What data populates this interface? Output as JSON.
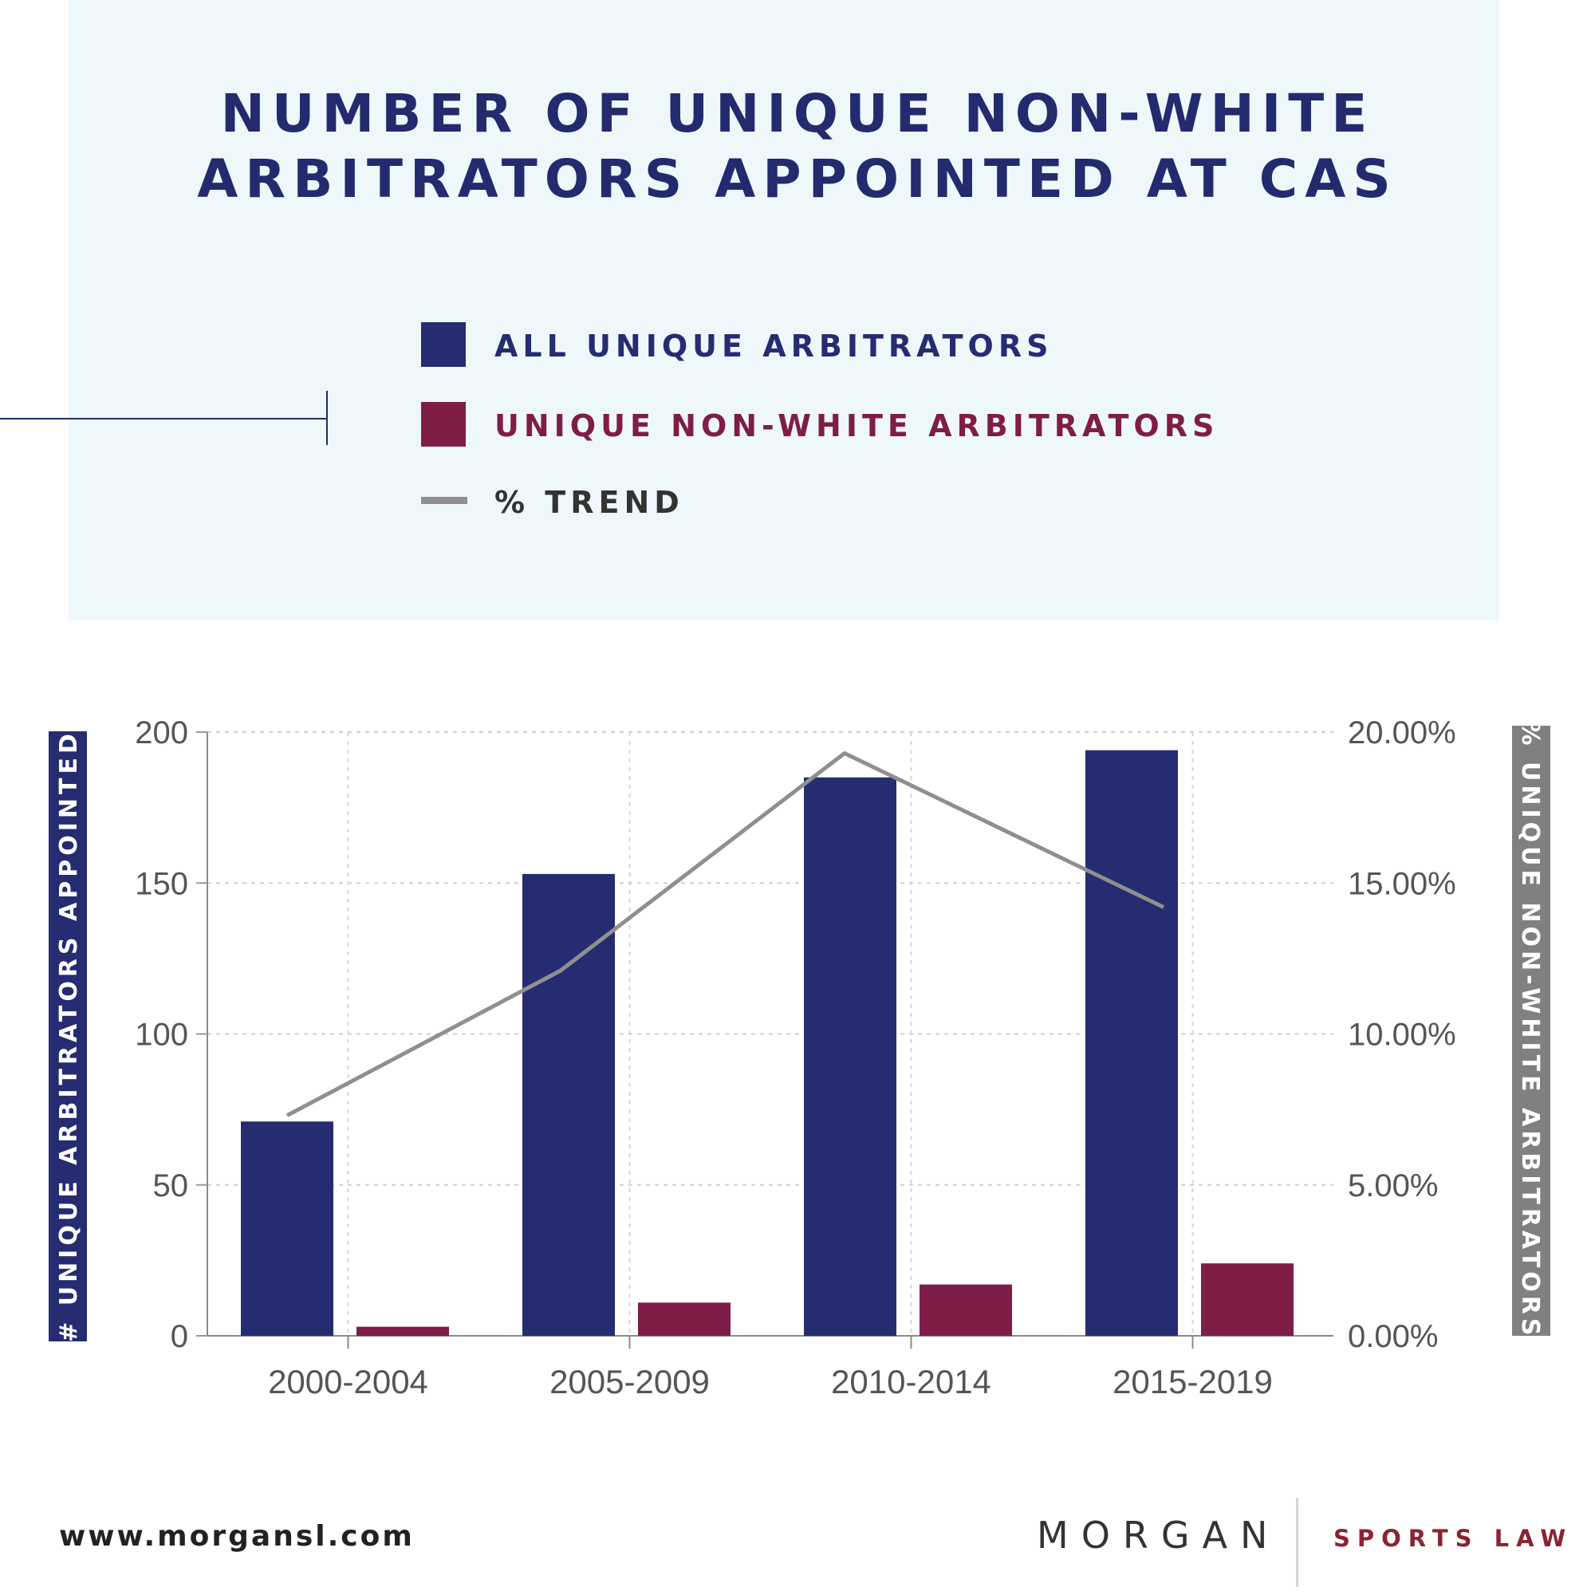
{
  "header": {
    "title_line1": "NUMBER OF UNIQUE NON-WHITE",
    "title_line2": "ARBITRATORS APPOINTED AT CAS"
  },
  "legend": {
    "items": [
      {
        "label": "ALL UNIQUE ARBITRATORS",
        "color": "#262c72"
      },
      {
        "label": "UNIQUE NON-WHITE ARBITRATORS",
        "color": "#7e1d47"
      },
      {
        "label": "% TREND",
        "color": "#8f8f8f"
      }
    ]
  },
  "colors": {
    "title": "#232b6e",
    "header_bg": "#eef8fb",
    "trend_label": "#333333",
    "axis_text": "#555555",
    "left_axis_bg": "#262c72",
    "right_axis_bg": "#808080"
  },
  "chart_data": {
    "type": "bar",
    "categories": [
      "2000-2004",
      "2005-2009",
      "2010-2014",
      "2015-2019"
    ],
    "series": [
      {
        "name": "ALL UNIQUE ARBITRATORS",
        "type": "bar",
        "axis": "left",
        "values": [
          71,
          153,
          185,
          194
        ]
      },
      {
        "name": "UNIQUE NON-WHITE ARBITRATORS",
        "type": "bar",
        "axis": "left",
        "values": [
          3,
          11,
          17,
          24
        ]
      },
      {
        "name": "% TREND",
        "type": "line",
        "axis": "right",
        "values": [
          7.3,
          12.1,
          19.3,
          14.2
        ]
      }
    ],
    "ylabel": "# UNIQUE ARBITRATORS APPOINTED",
    "ylabel_right": "% UNIQUE NON-WHITE ARBITRATORS",
    "ylim": [
      0,
      200
    ],
    "ylim_right": [
      0,
      20
    ],
    "yticks": [
      "0",
      "50",
      "100",
      "150",
      "200"
    ],
    "yticks_right": [
      "0.00%",
      "5.00%",
      "10.00%",
      "15.00%",
      "20.00%"
    ],
    "grid": true
  },
  "footer": {
    "url": "www.morgansl.com",
    "brand": "MORGAN",
    "brand_suffix": "SPORTS LAW"
  }
}
